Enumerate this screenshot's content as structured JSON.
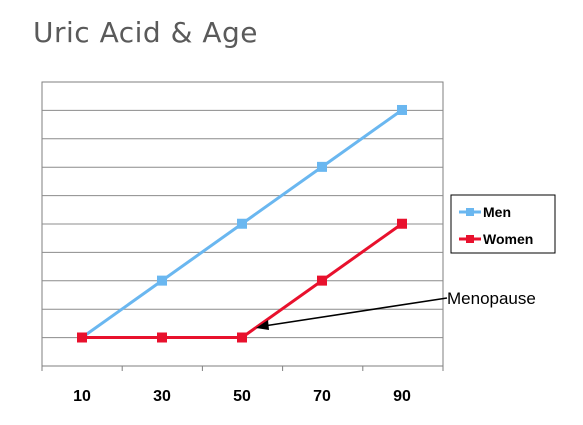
{
  "title": "Uric Acid & Age",
  "chart_data": {
    "type": "line",
    "title": "",
    "xlabel": "",
    "ylabel": "",
    "x": [
      10,
      30,
      50,
      70,
      90
    ],
    "y_gridlines": 9,
    "grid": true,
    "legend_position": "right",
    "series": [
      {
        "name": "Men",
        "color": "#6ab7f0",
        "values": [
          1,
          3,
          5,
          7,
          9
        ]
      },
      {
        "name": "Women",
        "color": "#e8112d",
        "values": [
          1,
          1,
          1,
          3,
          5
        ]
      }
    ],
    "annotations": [
      {
        "text": "Menopause",
        "x": 50,
        "y": 1
      }
    ]
  }
}
